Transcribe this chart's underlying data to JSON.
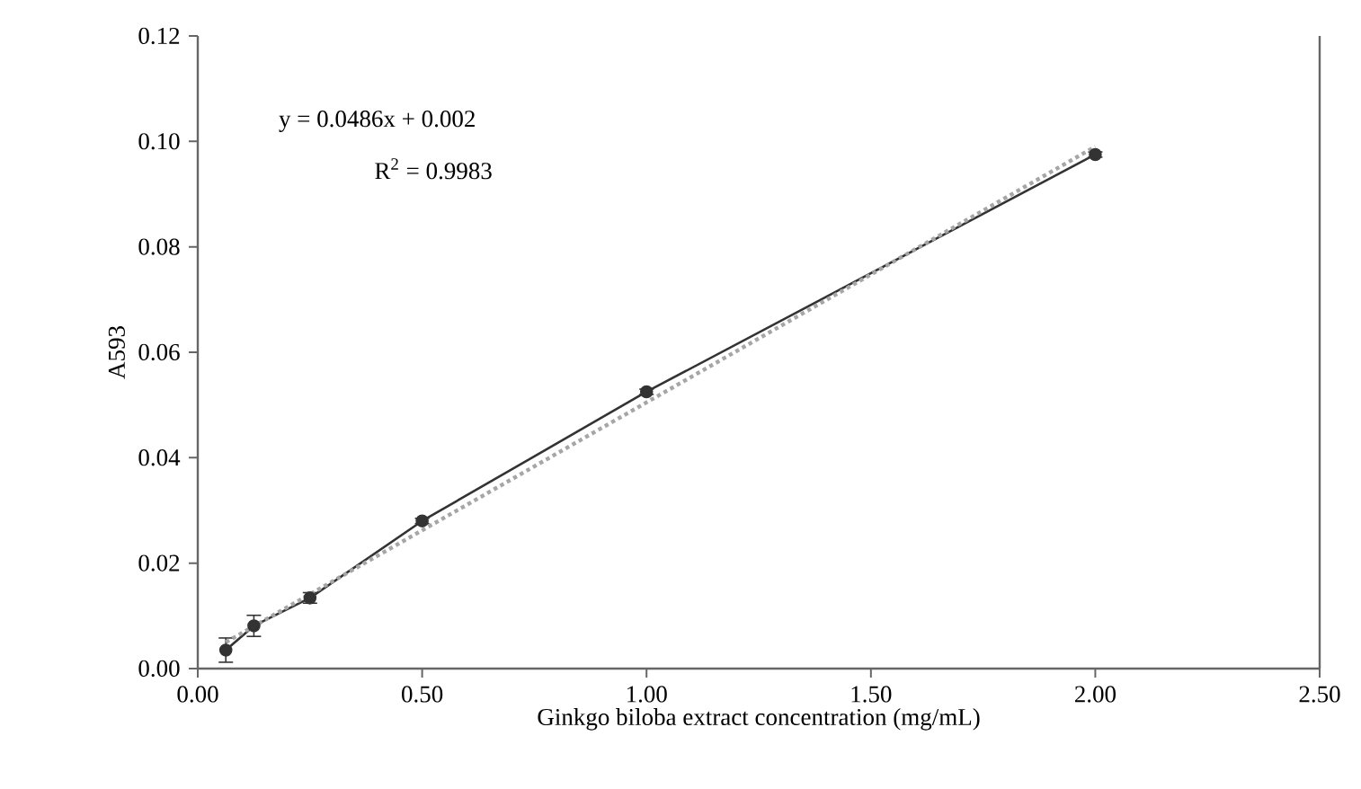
{
  "chart_data": {
    "type": "line",
    "xlabel": "Ginkgo biloba extract concentration (mg/mL)",
    "ylabel": "A593",
    "annotations": [
      "y = 0.0486x + 0.002",
      "R$^{2}$ = 0.9983"
    ],
    "xlim": [
      0,
      2.5
    ],
    "xticks": [
      {
        "value": 0,
        "label": "0.00"
      },
      {
        "value": 0.5,
        "label": "0.50"
      },
      {
        "value": 1,
        "label": "1.00"
      },
      {
        "value": 1.5,
        "label": "1.50"
      },
      {
        "value": 2,
        "label": "2.00"
      },
      {
        "value": 2.5,
        "label": "2.50"
      }
    ],
    "ylim": [
      0,
      0.12
    ],
    "yticks": [
      {
        "value": 0,
        "label": "0.00"
      },
      {
        "value": 0.02,
        "label": "0.02"
      },
      {
        "value": 0.04,
        "label": "0.04"
      },
      {
        "value": 0.06,
        "label": "0.06"
      },
      {
        "value": 0.08,
        "label": "0.08"
      },
      {
        "value": 0.1,
        "label": "0.10"
      },
      {
        "value": 0.12,
        "label": "0.12"
      }
    ],
    "series": [
      {
        "color": "#333333",
        "marker": "circle",
        "line_style": "solid",
        "x": [
          0.0625,
          0.125,
          0.25,
          0.5,
          1.0,
          2.0
        ],
        "values": [
          0.0035,
          0.0081,
          0.0134,
          0.028,
          0.0525,
          0.0975
        ],
        "errors": [
          0.0023,
          0.002,
          0.001,
          0.0005,
          0.0005,
          0.0005
        ]
      },
      {
        "color": "#a6a6a6",
        "marker": "none",
        "line_style": "dotted",
        "x": [
          0.0625,
          2.0
        ],
        "values": [
          0.005,
          0.099
        ]
      }
    ]
  }
}
